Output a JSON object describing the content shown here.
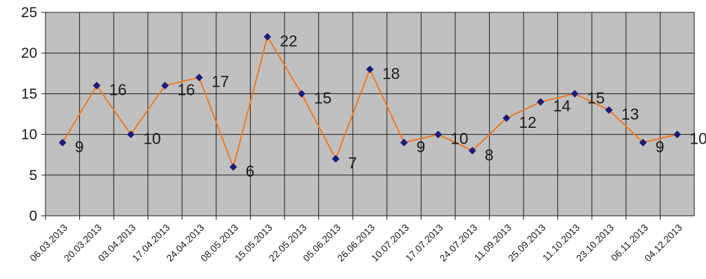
{
  "chart_data": {
    "type": "line",
    "title": "",
    "xlabel": "",
    "ylabel": "",
    "categories": [
      "06.03.2013",
      "20.03.2013",
      "03.04.2013",
      "17.04.2013",
      "24.04.2013",
      "08.05.2013",
      "15.05.2013",
      "22.05.2013",
      "05.06.2013",
      "26.06.2013",
      "10.07.2013",
      "17.07.2013",
      "24.07.2013",
      "11.09.2013",
      "25.09.2013",
      "11.10.2013",
      "23.10.2013",
      "06.11.2013",
      "04.12.2013"
    ],
    "series": [
      {
        "values": [
          9,
          16,
          10,
          16,
          17,
          6,
          22,
          15,
          7,
          18,
          9,
          10,
          8,
          12,
          14,
          15,
          13,
          9,
          10
        ]
      }
    ],
    "ylim": [
      0,
      25
    ],
    "yticks": [
      "0",
      "5",
      "10",
      "15",
      "20",
      "25"
    ],
    "grid": true,
    "legend": "none",
    "colors": {
      "plot_bg": "#c0c0c0",
      "grid": "#1a1a1a",
      "line": "#f07820",
      "marker": "#1c1c7a"
    }
  }
}
